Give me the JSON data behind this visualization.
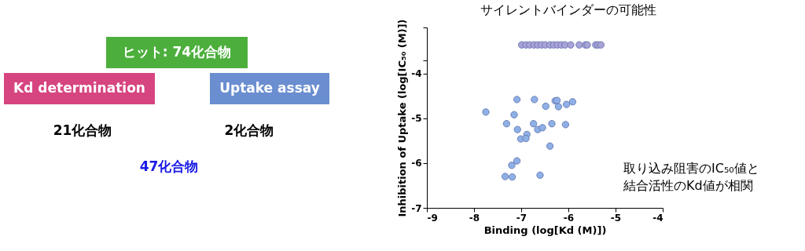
{
  "chart_data": [
    {
      "type": "other",
      "categories": [
        "ヒット: 74化合物",
        "Kd determination",
        "Uptake assay"
      ],
      "colors": [
        "#4caf3c",
        "#d6457f",
        "#6a8ed0"
      ],
      "annotations": [
        "21化合物",
        "2化合物",
        "47化合物"
      ]
    },
    {
      "type": "scatter",
      "xlabel": "Binding (log[Kd (M)])",
      "ylabel": "Inhibition of Uptake (log[IC₅₀ (M)])",
      "xlim": [
        -9,
        -4
      ],
      "xticks": [
        -9,
        -8,
        -7,
        -6,
        -5,
        -4
      ],
      "ylim": [
        -7,
        -2.97
      ],
      "yticks": [
        -7,
        -6,
        -5,
        -4,
        {
          "value": -3.7,
          "label": null
        },
        {
          "value": -2.97,
          "label": null
        }
      ],
      "marker": "circle",
      "grid": false,
      "series": [
        {
          "color": "#a9a3d8",
          "x": [
            -6.99,
            -6.9,
            -6.82,
            -6.73,
            -6.65,
            -6.57,
            -6.49,
            -6.39,
            -6.31,
            -6.23,
            -6.15,
            -6.07,
            -5.95,
            -5.77,
            -5.64,
            -5.6,
            -5.42,
            -5.37,
            -5.31
          ],
          "values": [
            -3.36,
            -3.36,
            -3.36,
            -3.36,
            -3.36,
            -3.36,
            -3.36,
            -3.36,
            -3.36,
            -3.36,
            -3.36,
            -3.36,
            -3.36,
            -3.36,
            -3.36,
            -3.36,
            -3.36,
            -3.36,
            -3.36
          ]
        },
        {
          "color": "#8fb0e6",
          "x": [
            -7.75,
            -7.09,
            -6.72,
            -7.15,
            -7.31,
            -7.08,
            -7.01,
            -6.88,
            -6.9,
            -6.74,
            -6.65,
            -6.55,
            -6.48,
            -6.35,
            -6.39,
            -6.28,
            -6.24,
            -6.21,
            -6.04,
            -5.91,
            -6.06,
            -7.09,
            -7.2,
            -7.34,
            -7.19,
            -6.6
          ],
          "values": [
            -4.86,
            -4.58,
            -4.58,
            -4.92,
            -5.12,
            -5.25,
            -5.46,
            -5.36,
            -5.45,
            -5.12,
            -5.25,
            -5.21,
            -4.73,
            -5.12,
            -5.62,
            -4.61,
            -4.6,
            -4.74,
            -4.69,
            -4.63,
            -5.14,
            -5.95,
            -6.05,
            -6.3,
            -6.31,
            -6.27
          ]
        }
      ],
      "annotations": [
        "サイレントバインダーの可能性",
        "取り込み阻害のIC₅₀値と結合活性のKd値が相関"
      ]
    }
  ]
}
